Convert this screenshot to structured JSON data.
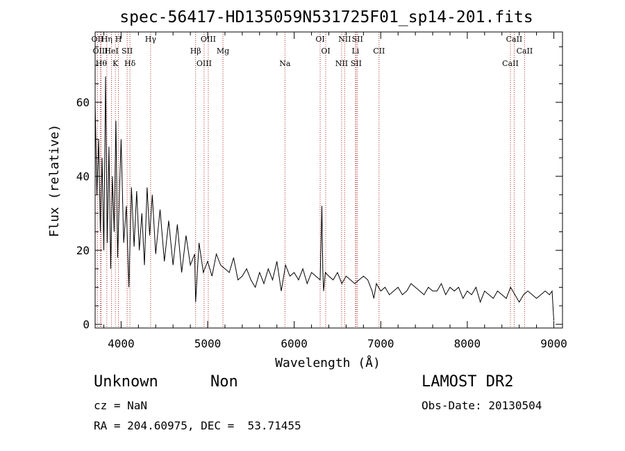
{
  "chart_data": {
    "type": "line",
    "title": "spec-56417-HD135059N531725F01_sp14-201.fits",
    "xlabel": "Wavelength (Å)",
    "ylabel": "Flux (relative)",
    "xlim": [
      3700,
      9100
    ],
    "ylim": [
      -1,
      79
    ],
    "x_ticks": [
      4000,
      5000,
      6000,
      7000,
      8000,
      9000
    ],
    "y_ticks": [
      0,
      20,
      40,
      60
    ],
    "grid": false,
    "series": [
      {
        "x": [
          3700,
          3720,
          3740,
          3760,
          3780,
          3800,
          3820,
          3840,
          3860,
          3880,
          3900,
          3920,
          3940,
          3960,
          3980,
          4000,
          4030,
          4060,
          4090,
          4120,
          4150,
          4180,
          4210,
          4240,
          4270,
          4300,
          4330,
          4360,
          4400,
          4450,
          4500,
          4550,
          4600,
          4650,
          4700,
          4750,
          4800,
          4850,
          4861,
          4900,
          4950,
          5000,
          5050,
          5100,
          5150,
          5200,
          5250,
          5300,
          5350,
          5400,
          5450,
          5500,
          5550,
          5600,
          5650,
          5700,
          5750,
          5800,
          5850,
          5900,
          5950,
          6000,
          6050,
          6100,
          6150,
          6200,
          6250,
          6300,
          6320,
          6330,
          6340,
          6360,
          6400,
          6450,
          6500,
          6550,
          6600,
          6650,
          6700,
          6750,
          6800,
          6850,
          6900,
          6920,
          6950,
          7000,
          7050,
          7100,
          7150,
          7200,
          7250,
          7300,
          7350,
          7400,
          7450,
          7500,
          7550,
          7600,
          7650,
          7700,
          7750,
          7800,
          7850,
          7900,
          7950,
          8000,
          8050,
          8100,
          8150,
          8200,
          8250,
          8300,
          8350,
          8400,
          8450,
          8500,
          8550,
          8600,
          8650,
          8700,
          8750,
          8800,
          8850,
          8900,
          8950,
          8980,
          9000
        ],
        "y": [
          60,
          35,
          50,
          25,
          45,
          20,
          67,
          22,
          48,
          15,
          40,
          25,
          55,
          18,
          35,
          50,
          22,
          32,
          10,
          37,
          21,
          36,
          20,
          30,
          16,
          37,
          24,
          35,
          19,
          31,
          17,
          28,
          16,
          27,
          14,
          24,
          16,
          19,
          6,
          22,
          14,
          17,
          13,
          19,
          16,
          15,
          14,
          18,
          12,
          13,
          15,
          12,
          10,
          14,
          11,
          15,
          12,
          17,
          9,
          16,
          13,
          14,
          12,
          15,
          11,
          14,
          13,
          12,
          32,
          15,
          9,
          14,
          13,
          12,
          14,
          11,
          13,
          12,
          11,
          12,
          13,
          12,
          9,
          7,
          11,
          9,
          10,
          8,
          9,
          10,
          8,
          9,
          11,
          10,
          9,
          8,
          10,
          9,
          9,
          11,
          8,
          10,
          9,
          10,
          7,
          9,
          8,
          10,
          6,
          9,
          8,
          7,
          9,
          8,
          7,
          10,
          8,
          6,
          8,
          9,
          8,
          7,
          8,
          9,
          8,
          9,
          1
        ]
      }
    ],
    "line_labels": [
      {
        "label": "OII",
        "x": 3727
      },
      {
        "label": "OIII",
        "x": 3760
      },
      {
        "label": "Hθ",
        "x": 3771
      },
      {
        "label": "Hη",
        "x": 3835
      },
      {
        "label": "HeI",
        "x": 3889
      },
      {
        "label": "K",
        "x": 3934
      },
      {
        "label": "H",
        "x": 3969
      },
      {
        "label": "SII",
        "x": 4070
      },
      {
        "label": "Hδ",
        "x": 4102
      },
      {
        "label": "Hγ",
        "x": 4341
      },
      {
        "label": "Hβ",
        "x": 4861
      },
      {
        "label": "OIII",
        "x": 4959
      },
      {
        "label": "OIII",
        "x": 5007
      },
      {
        "label": "Mg",
        "x": 5177
      },
      {
        "label": "Na",
        "x": 5893
      },
      {
        "label": "OI",
        "x": 6300
      },
      {
        "label": "OI",
        "x": 6364
      },
      {
        "label": "NII",
        "x": 6548
      },
      {
        "label": "NII",
        "x": 6583
      },
      {
        "label": "Li",
        "x": 6708
      },
      {
        "label": "SII",
        "x": 6716
      },
      {
        "label": "SII",
        "x": 6731
      },
      {
        "label": "CII",
        "x": 6980
      },
      {
        "label": "CaII",
        "x": 8498
      },
      {
        "label": "CaII",
        "x": 8542
      },
      {
        "label": "CaII",
        "x": 8662
      }
    ]
  },
  "colors": {
    "spectrum": "#000000",
    "line_markers": "#b22222"
  },
  "footer": {
    "class_label": "Unknown",
    "subclass_label": "Non",
    "survey": "LAMOST DR2",
    "cz": "cz = NaN",
    "obs_date": "Obs-Date: 20130504",
    "coords": "RA = 204.60975, DEC =  53.71455"
  }
}
